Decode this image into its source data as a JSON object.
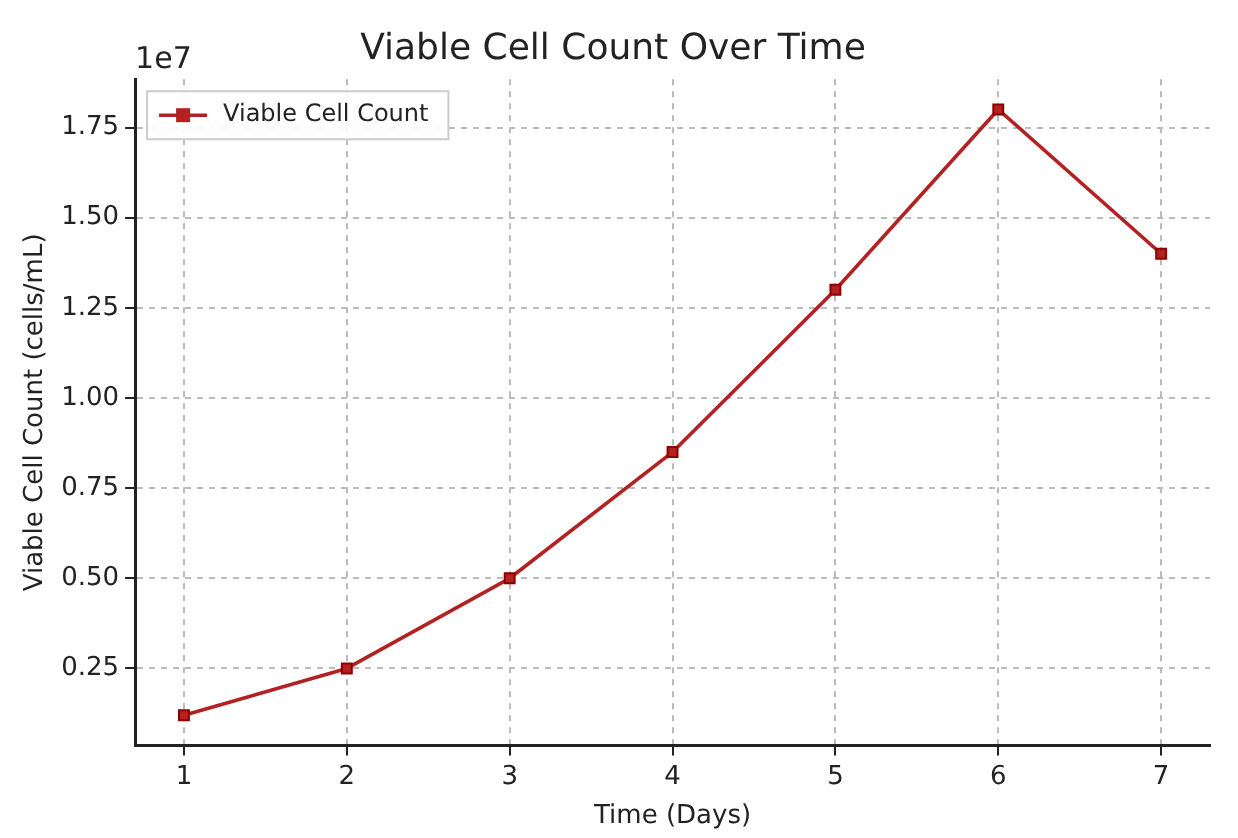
{
  "chart_data": {
    "type": "line",
    "title": "Viable Cell Count Over Time",
    "xlabel": "Time (Days)",
    "ylabel": "Viable Cell Count (cells/mL)",
    "annotations": [
      "1e7"
    ],
    "x": [
      1,
      2,
      3,
      4,
      5,
      6,
      7
    ],
    "series": [
      {
        "name": "Viable Cell Count",
        "color": "#b22222",
        "values": [
          0.12,
          0.25,
          0.5,
          0.85,
          1.3,
          1.8,
          1.4
        ]
      }
    ],
    "xlim": [
      0.7,
      7.3
    ],
    "xticks": [
      1,
      2,
      3,
      4,
      5,
      6,
      7
    ],
    "ylim": [
      0.036,
      1.884
    ],
    "yticks": [
      0.25,
      {
        "value": 0.5,
        "label": "0.50"
      },
      0.75,
      {
        "value": 1,
        "label": "1.00"
      },
      1.25,
      {
        "value": 1.5,
        "label": "1.50"
      },
      1.75
    ],
    "grid": true,
    "legend": "top left",
    "marker": "square",
    "line_style": "solid"
  }
}
